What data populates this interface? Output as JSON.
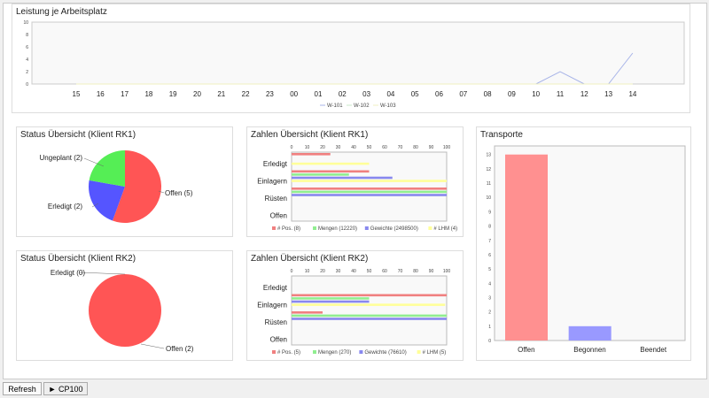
{
  "toolbar": {
    "refresh": "Refresh",
    "cp": "► CP100"
  },
  "chart_data": [
    {
      "id": "line",
      "type": "line",
      "title": "Leistung je Arbeitsplatz",
      "categories": [
        "15",
        "16",
        "17",
        "18",
        "19",
        "20",
        "21",
        "22",
        "23",
        "00",
        "01",
        "02",
        "03",
        "04",
        "05",
        "06",
        "07",
        "08",
        "09",
        "10",
        "11",
        "12",
        "13",
        "14"
      ],
      "ylim": [
        0,
        10
      ],
      "yticks": [
        0,
        2,
        4,
        6,
        8,
        10
      ],
      "series": [
        {
          "name": "W-101",
          "color": "#a8b4e8",
          "values": [
            0,
            0,
            0,
            0,
            0,
            0,
            0,
            0,
            0,
            0,
            0,
            0,
            0,
            0,
            0,
            0,
            0,
            0,
            0,
            0,
            2,
            0,
            0,
            5
          ]
        },
        {
          "name": "W-102",
          "color": "#c8e8c8",
          "values": [
            0,
            0,
            0,
            0,
            0,
            0,
            0,
            0,
            0,
            0,
            0,
            0,
            0,
            0,
            0,
            0,
            0,
            0,
            0,
            0,
            0,
            0,
            0,
            0
          ]
        },
        {
          "name": "W-103",
          "color": "#f0f0c0",
          "values": [
            0,
            0,
            0,
            0,
            0,
            0,
            0,
            0,
            0,
            0,
            0,
            0,
            0,
            0,
            0,
            0,
            0,
            0,
            0,
            0,
            0,
            0,
            0,
            0
          ]
        }
      ],
      "legend": "bottom"
    },
    {
      "id": "pie1",
      "type": "pie",
      "title": "Status Übersicht (Klient RK1)",
      "slices": [
        {
          "label": "Offen (5)",
          "value": 5,
          "color": "#ff5555"
        },
        {
          "label": "Erledigt (2)",
          "value": 2,
          "color": "#5555ff"
        },
        {
          "label": "Ungeplant (2)",
          "value": 2,
          "color": "#55ee55"
        }
      ]
    },
    {
      "id": "pie2",
      "type": "pie",
      "title": "Status Übersicht (Klient RK2)",
      "slices": [
        {
          "label": "Offen (2)",
          "value": 2,
          "color": "#ff5555"
        },
        {
          "label": "Erledigt (0)",
          "value": 0,
          "color": "#5555ff"
        }
      ]
    },
    {
      "id": "bar1",
      "type": "bar",
      "orientation": "horizontal",
      "title": "Zahlen Übersicht (Klient RK1)",
      "categories": [
        "Erledigt",
        "Einlagern",
        "Rüsten",
        "Offen"
      ],
      "xlim": [
        0,
        100
      ],
      "xticks": [
        0,
        10,
        20,
        30,
        40,
        50,
        60,
        70,
        80,
        90,
        100
      ],
      "series": [
        {
          "name": "# Pos. (8)",
          "color": "#f08080",
          "values": [
            25,
            50,
            100,
            0
          ]
        },
        {
          "name": "Mengen (12220)",
          "color": "#90ee90",
          "values": [
            0,
            37,
            100,
            0
          ]
        },
        {
          "name": "Gewichte (2498500)",
          "color": "#8888ee",
          "values": [
            0,
            65,
            100,
            0
          ]
        },
        {
          "name": "# LHM (4)",
          "color": "#ffff99",
          "values": [
            50,
            100,
            0,
            0
          ]
        }
      ],
      "legend": "bottom"
    },
    {
      "id": "bar2",
      "type": "bar",
      "orientation": "horizontal",
      "title": "Zahlen Übersicht (Klient RK2)",
      "categories": [
        "Erledigt",
        "Einlagern",
        "Rüsten",
        "Offen"
      ],
      "xlim": [
        0,
        100
      ],
      "xticks": [
        0,
        10,
        20,
        30,
        40,
        50,
        60,
        70,
        80,
        90,
        100
      ],
      "series": [
        {
          "name": "# Pos. (5)",
          "color": "#f08080",
          "values": [
            0,
            100,
            20,
            0
          ]
        },
        {
          "name": "Mengen (270)",
          "color": "#90ee90",
          "values": [
            0,
            50,
            100,
            0
          ]
        },
        {
          "name": "Gewichte (76610)",
          "color": "#8888ee",
          "values": [
            0,
            50,
            100,
            0
          ]
        },
        {
          "name": "# LHM (5)",
          "color": "#ffff99",
          "values": [
            0,
            99,
            0,
            0
          ]
        }
      ],
      "legend": "bottom"
    },
    {
      "id": "bar3",
      "type": "bar",
      "title": "Transporte",
      "categories": [
        "Offen",
        "Begonnen",
        "Beendet"
      ],
      "values": [
        13,
        1,
        0
      ],
      "colors": [
        "#ff9090",
        "#9999ff",
        "#99dd99"
      ],
      "ylim": [
        0,
        13.6
      ],
      "yticks": [
        0,
        1,
        2,
        3,
        4,
        5,
        6,
        7,
        8,
        9,
        10,
        11,
        12,
        13
      ]
    }
  ]
}
